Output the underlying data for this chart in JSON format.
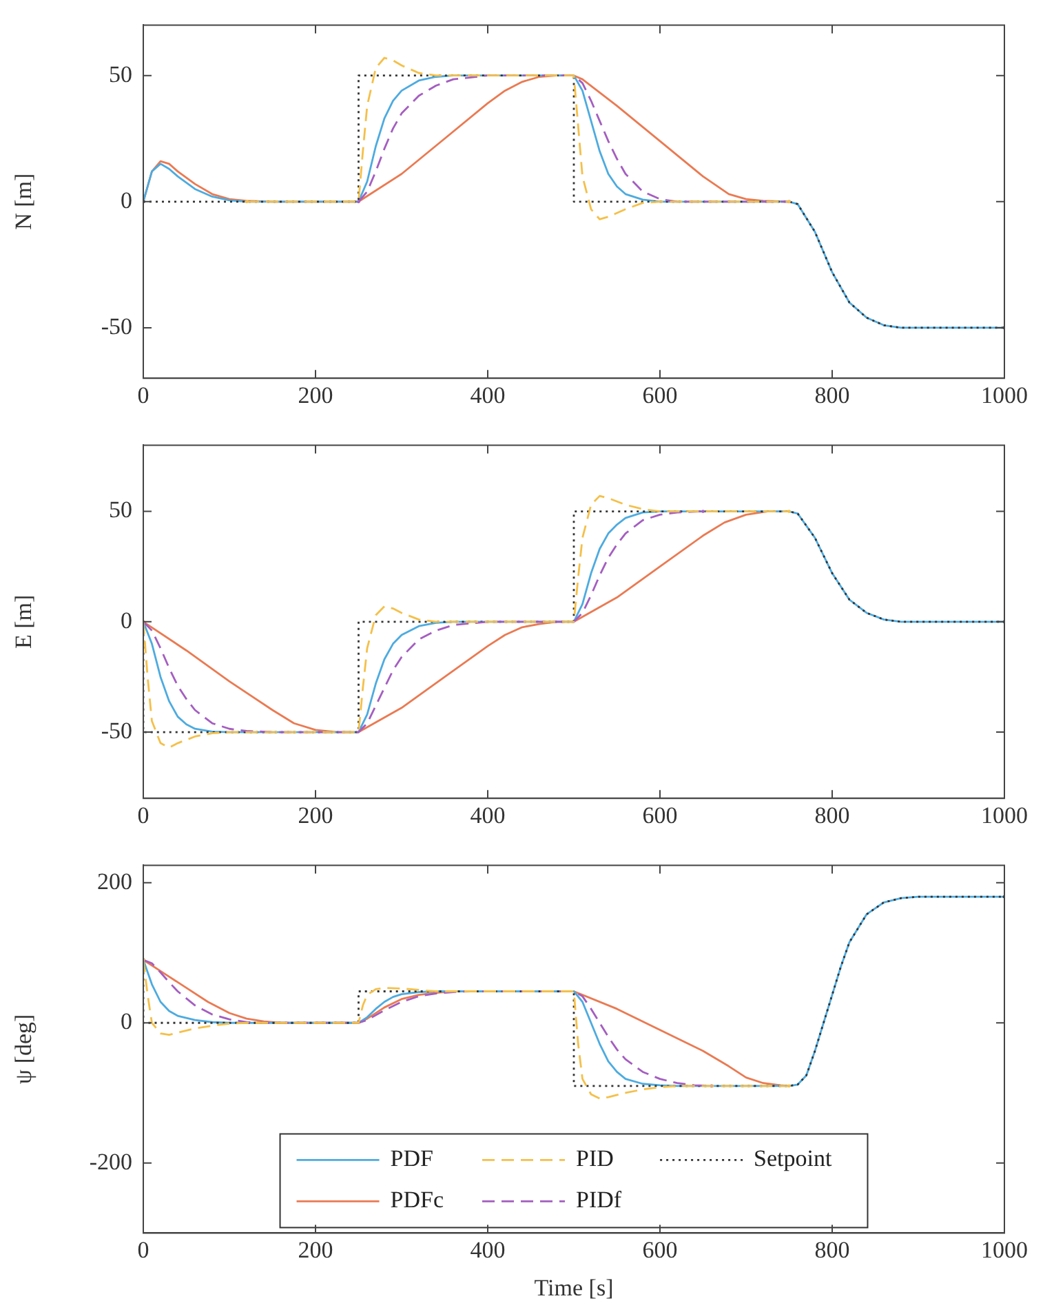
{
  "chart_data": [
    {
      "type": "line",
      "ylabel": "N [m]",
      "xlim": [
        0,
        1000
      ],
      "xticks": [
        0,
        200,
        400,
        600,
        800,
        1000
      ],
      "ylim": [
        -70,
        70
      ],
      "yticks": [
        -50,
        0,
        50
      ],
      "grid": false,
      "legend": false,
      "series": [
        {
          "color": "#4dabdf",
          "line_style": "solid",
          "x": [
            0,
            10,
            20,
            30,
            40,
            60,
            80,
            100,
            120,
            250,
            260,
            270,
            280,
            290,
            300,
            320,
            340,
            360,
            500,
            510,
            520,
            530,
            540,
            550,
            560,
            580,
            600,
            750,
            760,
            780,
            800,
            820,
            840,
            860,
            880,
            1000
          ],
          "values": [
            0,
            12,
            15,
            13,
            10,
            5,
            2,
            0.5,
            0,
            0,
            8,
            22,
            33,
            40,
            44,
            48,
            49.5,
            50,
            50,
            44,
            32,
            20,
            11,
            6,
            3,
            0.8,
            0,
            0,
            -1,
            -12,
            -28,
            -40,
            -46,
            -49,
            -50,
            -50
          ]
        },
        {
          "color": "#ea7a52",
          "line_style": "solid",
          "x": [
            0,
            10,
            20,
            30,
            40,
            60,
            80,
            100,
            120,
            150,
            250,
            300,
            350,
            400,
            420,
            440,
            460,
            480,
            500,
            510,
            550,
            600,
            650,
            680,
            700,
            720,
            750
          ],
          "values": [
            0,
            12,
            16,
            15,
            12,
            7,
            3,
            1,
            0.3,
            0,
            0,
            11,
            25,
            39,
            44,
            47.5,
            49.5,
            50,
            50,
            48.5,
            38,
            24,
            10,
            3,
            1,
            0.3,
            0
          ]
        },
        {
          "color": "#f4c04a",
          "line_style": "dashed",
          "x": [
            120,
            250,
            255,
            260,
            270,
            280,
            290,
            300,
            320,
            340,
            500,
            505,
            510,
            520,
            530,
            540,
            560,
            580,
            600,
            750
          ],
          "values": [
            0,
            0,
            20,
            38,
            53,
            57,
            56,
            54,
            51,
            50,
            50,
            30,
            10,
            -3,
            -7,
            -6,
            -3,
            -0.5,
            0,
            0
          ]
        },
        {
          "color": "#a45ec0",
          "line_style": "dashed",
          "x": [
            250,
            260,
            270,
            280,
            290,
            300,
            320,
            340,
            360,
            400,
            500,
            510,
            520,
            530,
            540,
            550,
            560,
            580,
            600,
            620,
            750
          ],
          "values": [
            0,
            4,
            12,
            21,
            29,
            35,
            42,
            46,
            48.5,
            50,
            50,
            47,
            40,
            32,
            24,
            17,
            11,
            4,
            1,
            0,
            0
          ]
        },
        {
          "color": "#333333",
          "line_style": "dotted",
          "x": [
            0,
            250,
            250,
            500,
            500,
            750,
            760,
            780,
            800,
            820,
            840,
            860,
            880,
            1000
          ],
          "values": [
            0,
            0,
            50,
            50,
            0,
            0,
            -1,
            -12,
            -28,
            -40,
            -46,
            -49,
            -50,
            -50
          ]
        }
      ]
    },
    {
      "type": "line",
      "ylabel": "E [m]",
      "xlim": [
        0,
        1000
      ],
      "xticks": [
        0,
        200,
        400,
        600,
        800,
        1000
      ],
      "ylim": [
        -80,
        80
      ],
      "yticks": [
        -50,
        0,
        50
      ],
      "grid": false,
      "legend": false,
      "series": [
        {
          "color": "#4dabdf",
          "line_style": "solid",
          "x": [
            0,
            10,
            20,
            30,
            40,
            50,
            60,
            80,
            100,
            250,
            260,
            270,
            280,
            290,
            300,
            320,
            340,
            360,
            500,
            510,
            520,
            530,
            540,
            550,
            560,
            580,
            600,
            750,
            760,
            780,
            800,
            820,
            840,
            860,
            880,
            1000
          ],
          "values": [
            0,
            -10,
            -25,
            -36,
            -43,
            -46.5,
            -48.5,
            -49.8,
            -50,
            -50,
            -42,
            -28,
            -17,
            -10,
            -6,
            -2,
            -0.5,
            0,
            0,
            8,
            22,
            33,
            40,
            44,
            47,
            49.5,
            50,
            50,
            49,
            38,
            22,
            10,
            4,
            1,
            0,
            0
          ]
        },
        {
          "color": "#ea7a52",
          "line_style": "solid",
          "x": [
            0,
            50,
            100,
            150,
            175,
            200,
            225,
            250,
            300,
            350,
            400,
            420,
            440,
            460,
            480,
            500,
            550,
            600,
            650,
            675,
            700,
            725,
            750
          ],
          "values": [
            0,
            -13,
            -27,
            -40,
            -46,
            -49,
            -50,
            -50,
            -39,
            -25,
            -11,
            -6,
            -2.5,
            -1,
            0,
            0,
            11,
            25,
            39,
            45,
            48.5,
            50,
            50
          ]
        },
        {
          "color": "#f4c04a",
          "line_style": "dashed",
          "x": [
            0,
            5,
            10,
            20,
            30,
            40,
            60,
            80,
            100,
            250,
            255,
            260,
            270,
            280,
            290,
            300,
            320,
            340,
            500,
            505,
            510,
            520,
            530,
            540,
            560,
            580,
            600,
            750
          ],
          "values": [
            0,
            -25,
            -45,
            -55,
            -57,
            -55,
            -52,
            -50.5,
            -50,
            -50,
            -30,
            -12,
            3,
            7,
            6,
            4,
            1,
            0,
            0,
            20,
            38,
            53,
            57,
            56,
            53,
            51,
            50,
            50
          ]
        },
        {
          "color": "#a45ec0",
          "line_style": "dashed",
          "x": [
            0,
            10,
            20,
            30,
            40,
            50,
            60,
            80,
            100,
            120,
            150,
            250,
            260,
            270,
            280,
            290,
            300,
            320,
            340,
            360,
            400,
            500,
            510,
            520,
            530,
            540,
            550,
            560,
            580,
            600,
            620,
            650
          ],
          "values": [
            0,
            -4,
            -12,
            -21,
            -29,
            -35,
            -40,
            -46,
            -48.5,
            -49.5,
            -50,
            -50,
            -46,
            -38,
            -30,
            -22,
            -16,
            -8,
            -4,
            -1.5,
            0,
            0,
            4,
            12,
            21,
            29,
            35,
            40,
            46,
            48.5,
            49.5,
            50
          ]
        },
        {
          "color": "#333333",
          "line_style": "dotted",
          "x": [
            0,
            0,
            250,
            250,
            500,
            500,
            750,
            760,
            780,
            800,
            820,
            840,
            860,
            880,
            1000
          ],
          "values": [
            0,
            -50,
            -50,
            0,
            0,
            50,
            50,
            49,
            38,
            22,
            10,
            4,
            1,
            0,
            0
          ]
        }
      ]
    },
    {
      "type": "line",
      "xlabel": "Time [s]",
      "ylabel": "ψ [deg]",
      "xlim": [
        0,
        1000
      ],
      "xticks": [
        0,
        200,
        400,
        600,
        800,
        1000
      ],
      "ylim": [
        -300,
        225
      ],
      "yticks": [
        -200,
        0,
        200
      ],
      "grid": false,
      "legend": "bottom",
      "series": [
        {
          "name": "PDF",
          "color": "#4dabdf",
          "line_style": "solid",
          "x": [
            0,
            10,
            20,
            30,
            40,
            60,
            80,
            100,
            250,
            260,
            270,
            280,
            290,
            300,
            320,
            340,
            500,
            510,
            520,
            530,
            540,
            550,
            560,
            580,
            600,
            620,
            750,
            760,
            770,
            780,
            790,
            800,
            810,
            820,
            840,
            860,
            880,
            900,
            1000
          ],
          "values": [
            90,
            55,
            30,
            17,
            10,
            4,
            1,
            0,
            0,
            8,
            20,
            30,
            37,
            41,
            44,
            45,
            45,
            30,
            0,
            -30,
            -55,
            -70,
            -80,
            -87,
            -89,
            -90,
            -90,
            -88,
            -75,
            -40,
            0,
            40,
            80,
            115,
            155,
            172,
            178,
            180,
            180
          ]
        },
        {
          "name": "PDFc",
          "color": "#ea7a52",
          "line_style": "solid",
          "x": [
            0,
            25,
            50,
            75,
            100,
            120,
            140,
            160,
            250,
            260,
            280,
            300,
            320,
            340,
            360,
            500,
            550,
            600,
            650,
            680,
            700,
            720,
            740,
            750
          ],
          "values": [
            90,
            70,
            50,
            30,
            14,
            6,
            2,
            0,
            0,
            6,
            22,
            34,
            40,
            43,
            45,
            45,
            20,
            -10,
            -40,
            -62,
            -78,
            -86,
            -89,
            -90
          ]
        },
        {
          "name": "PID",
          "color": "#f4c04a",
          "line_style": "dashed",
          "x": [
            0,
            5,
            10,
            20,
            30,
            40,
            60,
            80,
            100,
            120,
            250,
            255,
            260,
            270,
            280,
            300,
            320,
            340,
            500,
            505,
            510,
            520,
            530,
            540,
            560,
            580,
            600,
            620,
            750
          ],
          "values": [
            90,
            40,
            0,
            -15,
            -17,
            -14,
            -8,
            -4,
            -1,
            0,
            0,
            25,
            40,
            48,
            50,
            49,
            47,
            45,
            45,
            -30,
            -80,
            -102,
            -108,
            -106,
            -100,
            -95,
            -92,
            -90,
            -90
          ]
        },
        {
          "name": "PIDf",
          "color": "#a45ec0",
          "line_style": "dashed",
          "x": [
            0,
            10,
            20,
            30,
            40,
            60,
            80,
            100,
            120,
            140,
            250,
            260,
            280,
            300,
            320,
            340,
            360,
            380,
            500,
            510,
            520,
            530,
            540,
            550,
            560,
            580,
            600,
            620,
            640,
            660
          ],
          "values": [
            90,
            85,
            72,
            58,
            45,
            25,
            12,
            5,
            1,
            0,
            0,
            4,
            18,
            30,
            38,
            42,
            44,
            45,
            45,
            38,
            20,
            0,
            -20,
            -38,
            -52,
            -70,
            -80,
            -86,
            -89,
            -90
          ]
        },
        {
          "name": "Setpoint",
          "color": "#333333",
          "line_style": "dotted",
          "x": [
            0,
            0,
            250,
            250,
            500,
            500,
            750,
            760,
            770,
            780,
            790,
            800,
            810,
            820,
            840,
            860,
            880,
            900,
            1000
          ],
          "values": [
            90,
            0,
            0,
            45,
            45,
            -90,
            -90,
            -88,
            -75,
            -40,
            0,
            40,
            80,
            115,
            155,
            172,
            178,
            180,
            180
          ]
        }
      ]
    }
  ]
}
